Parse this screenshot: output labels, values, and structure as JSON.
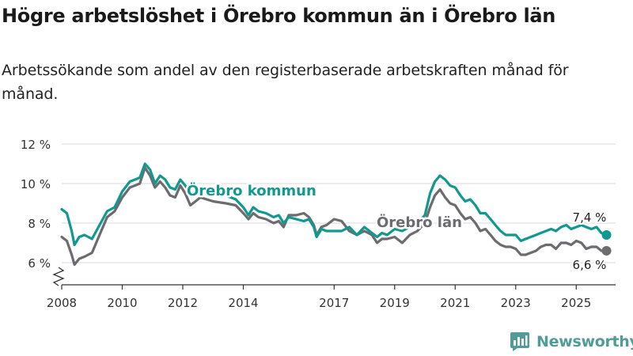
{
  "title": "Högre arbetslöshet i Örebro kommun än i Örebro län",
  "subtitle": "Arbetssökande som andel av den registerbaserade arbetskraften månad för månad.",
  "brand": "Newsworthy",
  "colors": {
    "kommun": "#12998f",
    "lan": "#6c6b70",
    "grid": "#d9d9d9",
    "axis": "#333333"
  },
  "chart_data": {
    "type": "line",
    "title": "Högre arbetslöshet i Örebro kommun än i Örebro län",
    "xlabel": "",
    "ylabel": "",
    "xlim": [
      2008,
      2026.3
    ],
    "ylim": [
      6,
      12
    ],
    "y_ticks": [
      6,
      8,
      10,
      12
    ],
    "y_tick_labels": [
      "6 %",
      "8 %",
      "10 %",
      "12 %"
    ],
    "x_ticks": [
      2008,
      2010,
      2012,
      2014,
      2017,
      2019,
      2021,
      2023,
      2025
    ],
    "x_tick_labels": [
      "2008",
      "2010",
      "2012",
      "2014",
      "2017",
      "2019",
      "2021",
      "2023",
      "2025"
    ],
    "axis_break": true,
    "series": [
      {
        "name": "Örebro kommun",
        "label": "Örebro kommun",
        "end_label": "7,4 %",
        "points": [
          [
            2008.0,
            8.7
          ],
          [
            2008.17,
            8.5
          ],
          [
            2008.33,
            7.6
          ],
          [
            2008.42,
            6.9
          ],
          [
            2008.58,
            7.3
          ],
          [
            2008.75,
            7.4
          ],
          [
            2009.0,
            7.2
          ],
          [
            2009.25,
            7.9
          ],
          [
            2009.5,
            8.6
          ],
          [
            2009.75,
            8.8
          ],
          [
            2010.0,
            9.6
          ],
          [
            2010.25,
            10.1
          ],
          [
            2010.42,
            10.2
          ],
          [
            2010.58,
            10.3
          ],
          [
            2010.75,
            11.0
          ],
          [
            2010.92,
            10.7
          ],
          [
            2011.08,
            10.0
          ],
          [
            2011.25,
            10.4
          ],
          [
            2011.42,
            10.2
          ],
          [
            2011.58,
            9.8
          ],
          [
            2011.75,
            9.7
          ],
          [
            2011.92,
            10.2
          ],
          [
            2012.08,
            9.9
          ],
          [
            2012.25,
            9.5
          ],
          [
            2012.42,
            9.5
          ],
          [
            2012.58,
            9.7
          ],
          [
            2013.0,
            9.5
          ],
          [
            2013.42,
            9.4
          ],
          [
            2013.75,
            9.2
          ],
          [
            2014.0,
            8.8
          ],
          [
            2014.17,
            8.4
          ],
          [
            2014.33,
            8.8
          ],
          [
            2014.5,
            8.6
          ],
          [
            2014.75,
            8.5
          ],
          [
            2015.0,
            8.3
          ],
          [
            2015.17,
            8.4
          ],
          [
            2015.33,
            8.0
          ],
          [
            2015.5,
            8.3
          ],
          [
            2015.75,
            8.2
          ],
          [
            2016.0,
            8.1
          ],
          [
            2016.17,
            8.2
          ],
          [
            2016.33,
            7.8
          ],
          [
            2016.42,
            7.3
          ],
          [
            2016.58,
            7.7
          ],
          [
            2016.75,
            7.6
          ],
          [
            2017.0,
            7.6
          ],
          [
            2017.25,
            7.6
          ],
          [
            2017.5,
            7.8
          ],
          [
            2017.75,
            7.4
          ],
          [
            2018.0,
            7.8
          ],
          [
            2018.25,
            7.5
          ],
          [
            2018.42,
            7.3
          ],
          [
            2018.58,
            7.5
          ],
          [
            2018.75,
            7.4
          ],
          [
            2019.0,
            7.7
          ],
          [
            2019.25,
            7.6
          ],
          [
            2019.5,
            7.8
          ],
          [
            2019.75,
            8.0
          ],
          [
            2020.0,
            8.4
          ],
          [
            2020.17,
            9.5
          ],
          [
            2020.33,
            10.1
          ],
          [
            2020.5,
            10.4
          ],
          [
            2020.67,
            10.2
          ],
          [
            2020.83,
            9.9
          ],
          [
            2021.0,
            9.8
          ],
          [
            2021.17,
            9.4
          ],
          [
            2021.33,
            9.1
          ],
          [
            2021.5,
            9.2
          ],
          [
            2021.67,
            8.9
          ],
          [
            2021.83,
            8.5
          ],
          [
            2022.0,
            8.5
          ],
          [
            2022.17,
            8.2
          ],
          [
            2022.33,
            7.9
          ],
          [
            2022.5,
            7.6
          ],
          [
            2022.67,
            7.4
          ],
          [
            2022.83,
            7.4
          ],
          [
            2023.0,
            7.4
          ],
          [
            2023.17,
            7.1
          ],
          [
            2023.33,
            7.2
          ],
          [
            2023.5,
            7.3
          ],
          [
            2023.67,
            7.4
          ],
          [
            2023.83,
            7.5
          ],
          [
            2024.0,
            7.6
          ],
          [
            2024.17,
            7.7
          ],
          [
            2024.33,
            7.6
          ],
          [
            2024.5,
            7.8
          ],
          [
            2024.67,
            7.9
          ],
          [
            2024.83,
            7.7
          ],
          [
            2025.0,
            7.8
          ],
          [
            2025.17,
            7.9
          ],
          [
            2025.33,
            7.8
          ],
          [
            2025.5,
            7.7
          ],
          [
            2025.67,
            7.8
          ],
          [
            2025.83,
            7.5
          ],
          [
            2026.0,
            7.4
          ]
        ]
      },
      {
        "name": "Örebro län",
        "label": "Örebro län",
        "end_label": "6,6 %",
        "points": [
          [
            2008.0,
            7.3
          ],
          [
            2008.17,
            7.1
          ],
          [
            2008.33,
            6.4
          ],
          [
            2008.42,
            5.9
          ],
          [
            2008.58,
            6.2
          ],
          [
            2008.75,
            6.3
          ],
          [
            2009.0,
            6.5
          ],
          [
            2009.25,
            7.4
          ],
          [
            2009.5,
            8.3
          ],
          [
            2009.75,
            8.6
          ],
          [
            2010.0,
            9.3
          ],
          [
            2010.25,
            9.8
          ],
          [
            2010.42,
            9.9
          ],
          [
            2010.58,
            10.0
          ],
          [
            2010.75,
            10.8
          ],
          [
            2010.92,
            10.4
          ],
          [
            2011.08,
            9.8
          ],
          [
            2011.25,
            10.1
          ],
          [
            2011.42,
            9.8
          ],
          [
            2011.58,
            9.4
          ],
          [
            2011.75,
            9.3
          ],
          [
            2011.92,
            9.9
          ],
          [
            2012.08,
            9.5
          ],
          [
            2012.25,
            8.9
          ],
          [
            2012.42,
            9.1
          ],
          [
            2012.58,
            9.3
          ],
          [
            2013.0,
            9.1
          ],
          [
            2013.42,
            9.0
          ],
          [
            2013.75,
            8.9
          ],
          [
            2014.0,
            8.5
          ],
          [
            2014.17,
            8.2
          ],
          [
            2014.33,
            8.5
          ],
          [
            2014.5,
            8.3
          ],
          [
            2014.75,
            8.2
          ],
          [
            2015.0,
            8.0
          ],
          [
            2015.17,
            8.1
          ],
          [
            2015.33,
            7.8
          ],
          [
            2015.5,
            8.4
          ],
          [
            2015.75,
            8.4
          ],
          [
            2016.0,
            8.5
          ],
          [
            2016.17,
            8.3
          ],
          [
            2016.33,
            7.9
          ],
          [
            2016.42,
            7.4
          ],
          [
            2016.58,
            7.8
          ],
          [
            2016.75,
            7.9
          ],
          [
            2017.0,
            8.2
          ],
          [
            2017.25,
            8.1
          ],
          [
            2017.5,
            7.6
          ],
          [
            2017.75,
            7.4
          ],
          [
            2018.0,
            7.6
          ],
          [
            2018.25,
            7.4
          ],
          [
            2018.42,
            7.0
          ],
          [
            2018.58,
            7.2
          ],
          [
            2018.75,
            7.2
          ],
          [
            2019.0,
            7.3
          ],
          [
            2019.25,
            7.0
          ],
          [
            2019.5,
            7.4
          ],
          [
            2019.75,
            7.6
          ],
          [
            2020.0,
            8.0
          ],
          [
            2020.17,
            8.8
          ],
          [
            2020.33,
            9.4
          ],
          [
            2020.5,
            9.7
          ],
          [
            2020.67,
            9.3
          ],
          [
            2020.83,
            9.0
          ],
          [
            2021.0,
            8.9
          ],
          [
            2021.17,
            8.5
          ],
          [
            2021.33,
            8.2
          ],
          [
            2021.5,
            8.3
          ],
          [
            2021.67,
            8.0
          ],
          [
            2021.83,
            7.6
          ],
          [
            2022.0,
            7.7
          ],
          [
            2022.17,
            7.4
          ],
          [
            2022.33,
            7.1
          ],
          [
            2022.5,
            6.9
          ],
          [
            2022.67,
            6.8
          ],
          [
            2022.83,
            6.8
          ],
          [
            2023.0,
            6.7
          ],
          [
            2023.17,
            6.4
          ],
          [
            2023.33,
            6.4
          ],
          [
            2023.5,
            6.5
          ],
          [
            2023.67,
            6.6
          ],
          [
            2023.83,
            6.8
          ],
          [
            2024.0,
            6.9
          ],
          [
            2024.17,
            6.9
          ],
          [
            2024.33,
            6.7
          ],
          [
            2024.5,
            7.0
          ],
          [
            2024.67,
            7.0
          ],
          [
            2024.83,
            6.9
          ],
          [
            2025.0,
            7.1
          ],
          [
            2025.17,
            7.0
          ],
          [
            2025.33,
            6.7
          ],
          [
            2025.5,
            6.8
          ],
          [
            2025.67,
            6.8
          ],
          [
            2025.83,
            6.6
          ],
          [
            2026.0,
            6.6
          ]
        ]
      }
    ]
  }
}
